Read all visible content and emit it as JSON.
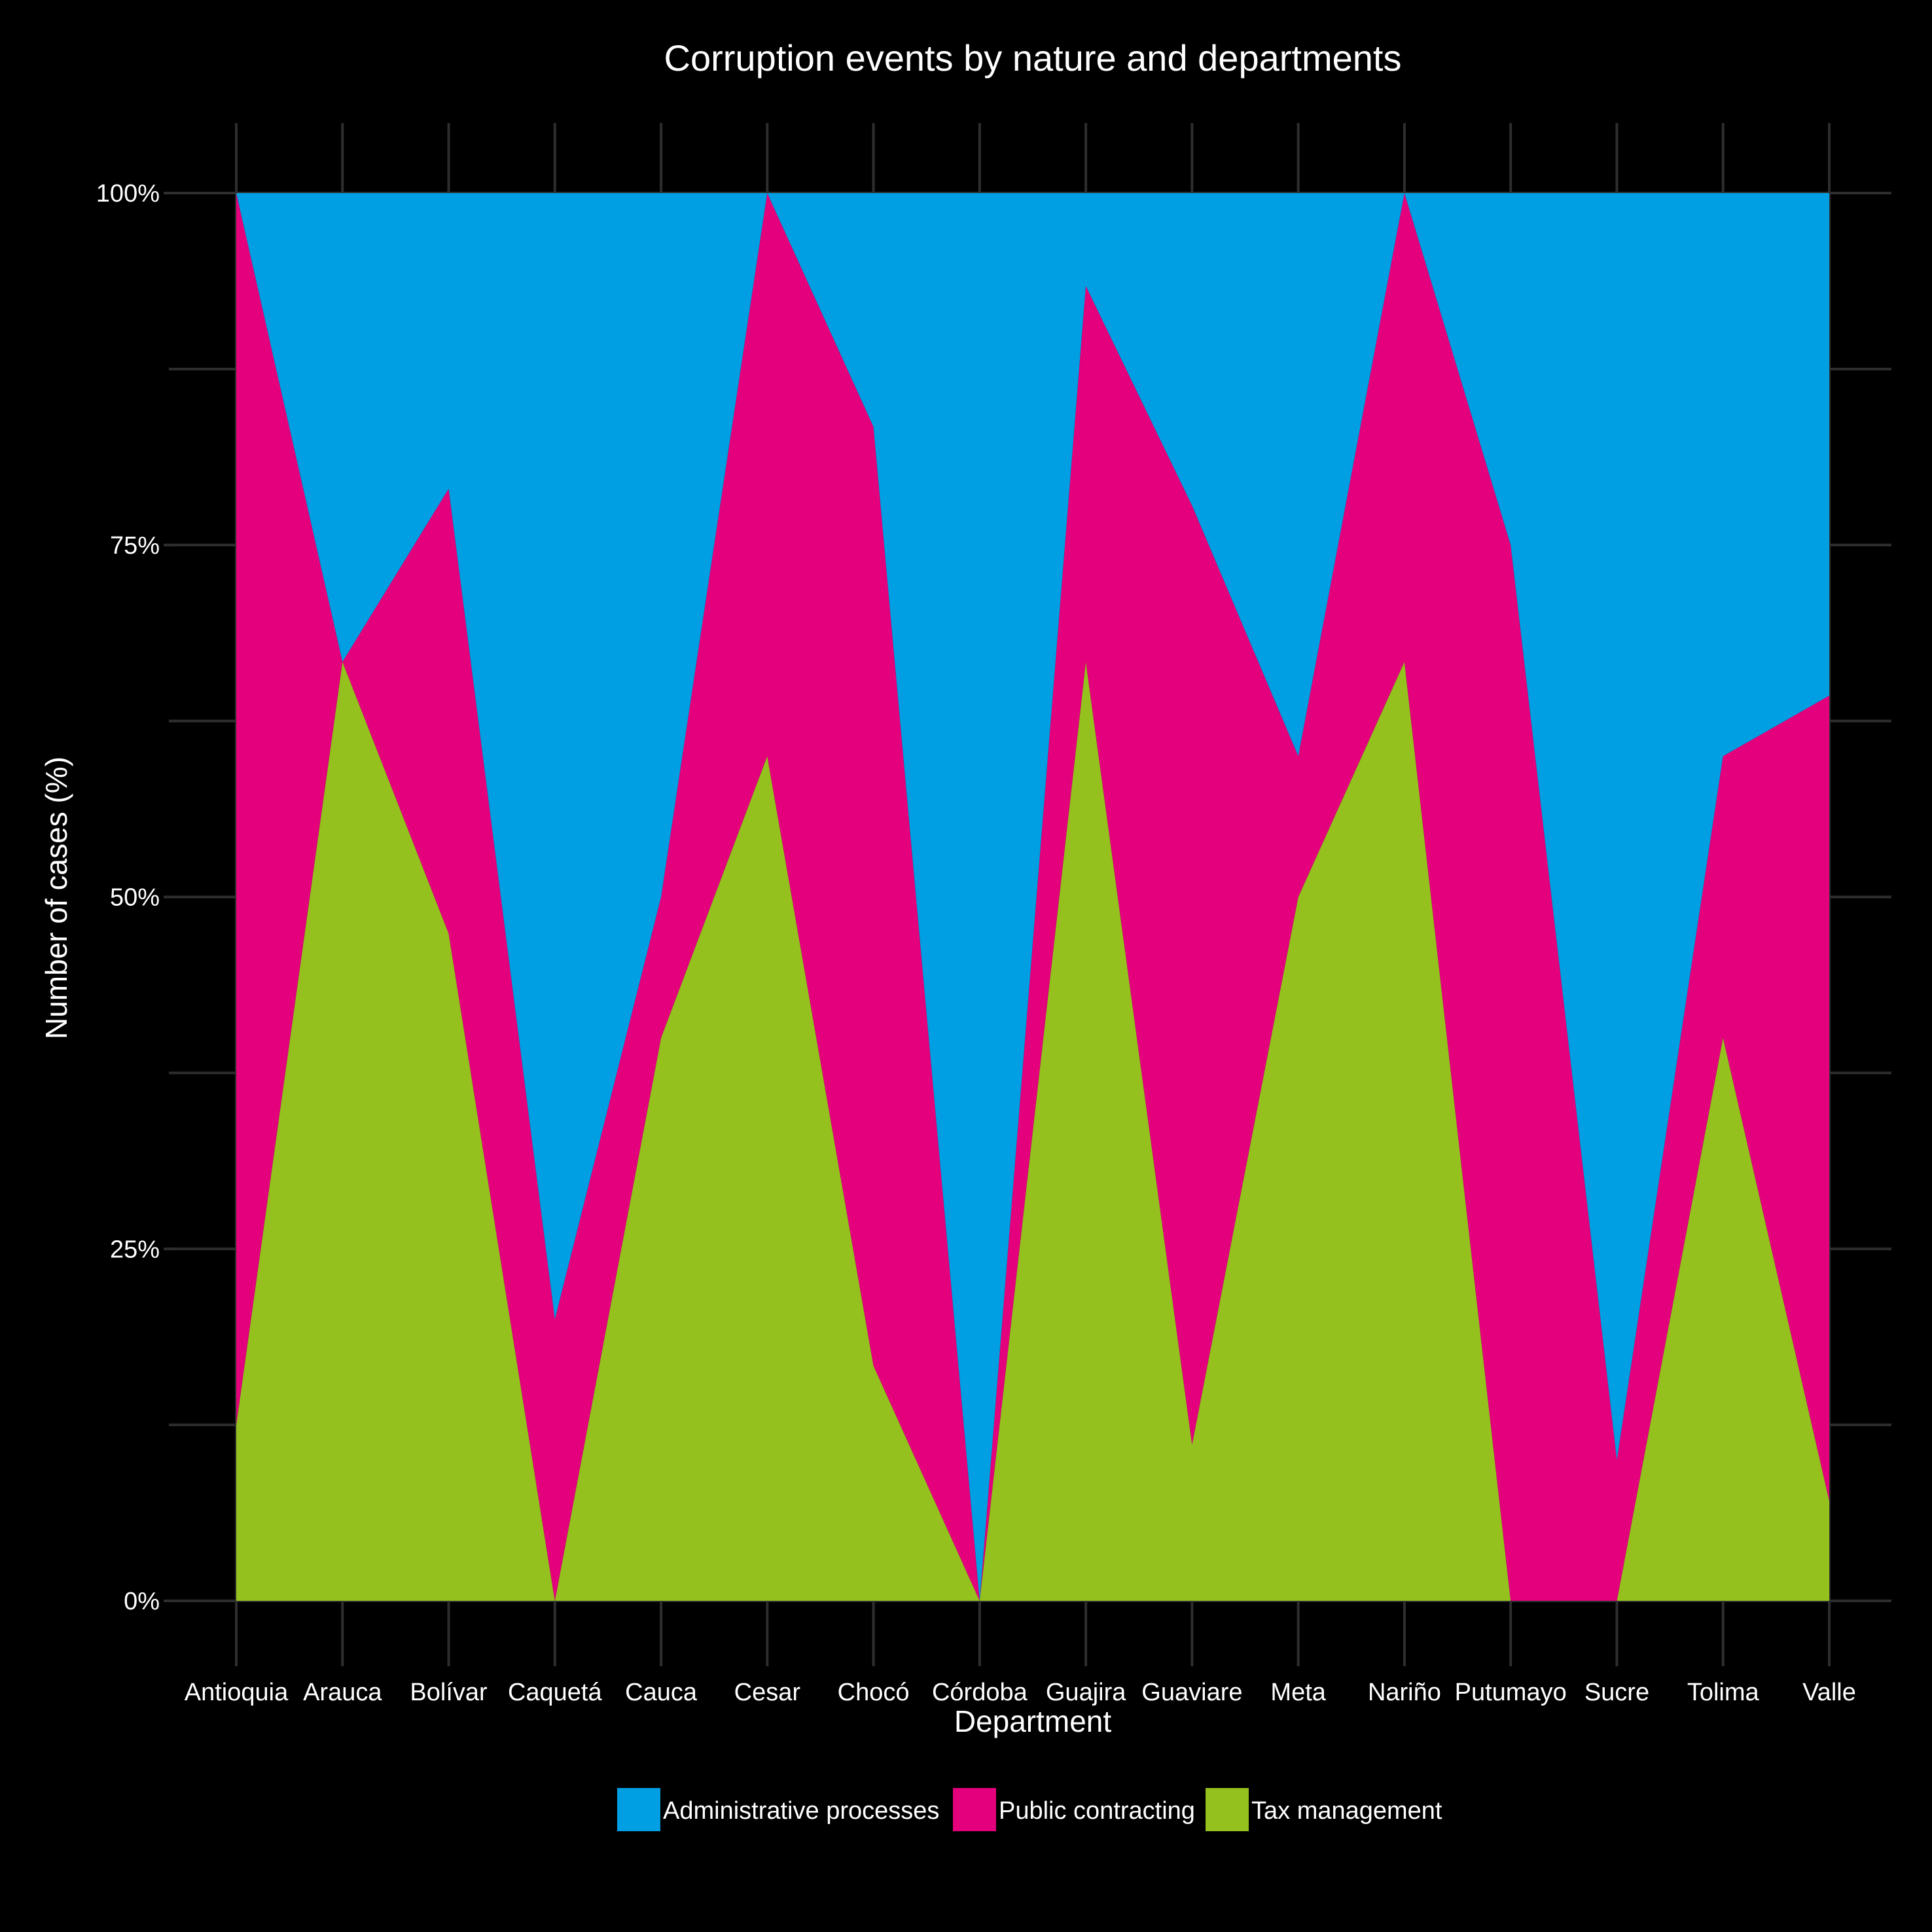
{
  "chart_data": {
    "type": "area",
    "stacked": "percent",
    "title": "Corruption events by nature and departments",
    "xlabel": "Department",
    "ylabel": "Number of cases (%)",
    "ylim": [
      0,
      1
    ],
    "yticks": [
      0,
      0.25,
      0.5,
      0.75,
      1
    ],
    "ytick_labels": [
      "0%",
      "25%",
      "50%",
      "75%",
      "100%"
    ],
    "grid": true,
    "legend_position": "bottom",
    "categories": [
      "Antioquia",
      "Arauca",
      "Bolívar",
      "Caquetá",
      "Cauca",
      "Cesar",
      "Chocó",
      "Córdoba",
      "Guajira",
      "Guaviare",
      "Meta",
      "Nariño",
      "Putumayo",
      "Sucre",
      "Tolima",
      "Valle"
    ],
    "series": [
      {
        "name": "Tax management",
        "color": "#95c11f",
        "values": [
          0.125,
          0.667,
          0.474,
          0.0,
          0.4,
          0.6,
          0.167,
          0.0,
          0.667,
          0.111,
          0.5,
          0.667,
          0.0,
          0.0,
          0.4,
          0.071
        ]
      },
      {
        "name": "Public contracting",
        "color": "#e4007c",
        "values": [
          0.875,
          0.0,
          0.316,
          0.2,
          0.1,
          0.4,
          0.667,
          0.0,
          0.267,
          0.667,
          0.1,
          0.333,
          0.75,
          0.1,
          0.2,
          0.572
        ]
      },
      {
        "name": "Administrative processes",
        "color": "#009fe3",
        "values": [
          0.0,
          0.333,
          0.21,
          0.8,
          0.5,
          0.0,
          0.166,
          1.0,
          0.066,
          0.222,
          0.4,
          0.0,
          0.25,
          0.9,
          0.4,
          0.357
        ]
      }
    ],
    "legend_order": [
      "Administrative processes",
      "Public contracting",
      "Tax management"
    ]
  }
}
